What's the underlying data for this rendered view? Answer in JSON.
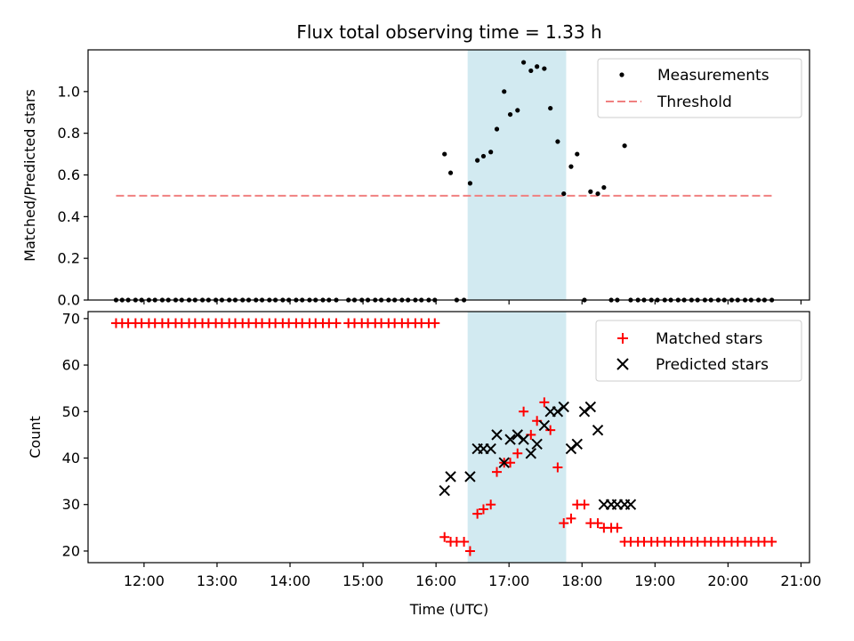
{
  "chart_data": [
    {
      "type": "scatter",
      "title": "Flux total observing time = 1.33 h",
      "ylabel": "Matched/Predicted stars",
      "xlabel": "",
      "xlim": [
        "11:14",
        "21:07"
      ],
      "ylim": [
        0,
        1.2
      ],
      "yticks": [
        0.0,
        0.2,
        0.4,
        0.6,
        0.8,
        1.0
      ],
      "ytick_labels": [
        "0.0",
        "0.2",
        "0.4",
        "0.6",
        "0.8",
        "1.0"
      ],
      "grid": false,
      "legend_position": "top-right",
      "shaded_span": {
        "from": "16:26",
        "to": "17:47",
        "color": "#add8e6"
      },
      "series": [
        {
          "name": "Measurements",
          "marker": "dot",
          "color": "#000000",
          "x": [
            "11:37",
            "11:42",
            "11:47",
            "11:53",
            "11:58",
            "12:04",
            "12:09",
            "12:15",
            "12:20",
            "12:26",
            "12:31",
            "12:37",
            "12:42",
            "12:48",
            "12:53",
            "12:59",
            "13:04",
            "13:10",
            "13:15",
            "13:21",
            "13:26",
            "13:32",
            "13:37",
            "13:43",
            "13:48",
            "13:54",
            "13:59",
            "14:05",
            "14:10",
            "14:16",
            "14:21",
            "14:27",
            "14:32",
            "14:38",
            "14:48",
            "14:53",
            "14:59",
            "15:04",
            "15:10",
            "15:15",
            "15:21",
            "15:26",
            "15:32",
            "15:37",
            "15:43",
            "15:48",
            "15:54",
            "15:59",
            "16:07",
            "16:12",
            "16:17",
            "16:23",
            "16:28",
            "16:34",
            "16:39",
            "16:45",
            "16:50",
            "16:56",
            "17:01",
            "17:07",
            "17:12",
            "17:18",
            "17:23",
            "17:29",
            "17:34",
            "17:40",
            "17:45",
            "17:51",
            "17:56",
            "18:02",
            "18:07",
            "18:13",
            "18:18",
            "18:24",
            "18:29",
            "18:35",
            "18:40",
            "18:46",
            "18:51",
            "18:57",
            "19:02",
            "19:08",
            "19:13",
            "19:19",
            "19:24",
            "19:30",
            "19:35",
            "19:41",
            "19:46",
            "19:52",
            "19:57",
            "20:03",
            "20:08",
            "20:14",
            "20:19",
            "20:25",
            "20:30",
            "20:36"
          ],
          "y": [
            0,
            0,
            0,
            0,
            0,
            0,
            0,
            0,
            0,
            0,
            0,
            0,
            0,
            0,
            0,
            0,
            0,
            0,
            0,
            0,
            0,
            0,
            0,
            0,
            0,
            0,
            0,
            0,
            0,
            0,
            0,
            0,
            0,
            0,
            0,
            0,
            0,
            0,
            0,
            0,
            0,
            0,
            0,
            0,
            0,
            0,
            0,
            0,
            0.7,
            0.61,
            0,
            0,
            0.56,
            0.67,
            0.69,
            0.71,
            0.82,
            1.0,
            0.89,
            0.91,
            1.14,
            1.1,
            1.12,
            1.11,
            0.92,
            0.76,
            0.51,
            0.64,
            0.7,
            0,
            0.52,
            0.51,
            0.54,
            0,
            0,
            0.74,
            0,
            0,
            0,
            0,
            0,
            0,
            0,
            0,
            0,
            0,
            0,
            0,
            0,
            0,
            0,
            0,
            0,
            0,
            0,
            0,
            0,
            0
          ]
        },
        {
          "name": "Threshold",
          "marker": "dashed-line",
          "color": "#f08080",
          "x": [
            "11:37",
            "20:36"
          ],
          "y": [
            0.5,
            0.5
          ]
        }
      ]
    },
    {
      "type": "scatter",
      "title": "",
      "ylabel": "Count",
      "xlabel": "Time (UTC)",
      "xlim": [
        "11:14",
        "21:07"
      ],
      "ylim": [
        17.5,
        71.5
      ],
      "xticks": [
        "12:00",
        "13:00",
        "14:00",
        "15:00",
        "16:00",
        "17:00",
        "18:00",
        "19:00",
        "20:00",
        "21:00"
      ],
      "yticks": [
        20,
        30,
        40,
        50,
        60,
        70
      ],
      "ytick_labels": [
        "20",
        "30",
        "40",
        "50",
        "60",
        "70"
      ],
      "grid": false,
      "legend_position": "top-right",
      "shaded_span": {
        "from": "16:26",
        "to": "17:47",
        "color": "#add8e6"
      },
      "series": [
        {
          "name": "Matched stars",
          "marker": "plus",
          "color": "#ff0000",
          "x": [
            "11:37",
            "11:42",
            "11:47",
            "11:53",
            "11:58",
            "12:04",
            "12:09",
            "12:15",
            "12:20",
            "12:26",
            "12:31",
            "12:37",
            "12:42",
            "12:48",
            "12:53",
            "12:59",
            "13:04",
            "13:10",
            "13:15",
            "13:21",
            "13:26",
            "13:32",
            "13:37",
            "13:43",
            "13:48",
            "13:54",
            "13:59",
            "14:05",
            "14:10",
            "14:16",
            "14:21",
            "14:27",
            "14:32",
            "14:38",
            "14:48",
            "14:53",
            "14:59",
            "15:04",
            "15:10",
            "15:15",
            "15:21",
            "15:26",
            "15:32",
            "15:37",
            "15:43",
            "15:48",
            "15:54",
            "15:59",
            "16:07",
            "16:12",
            "16:17",
            "16:23",
            "16:28",
            "16:34",
            "16:39",
            "16:45",
            "16:50",
            "16:56",
            "17:01",
            "17:07",
            "17:12",
            "17:18",
            "17:23",
            "17:29",
            "17:34",
            "17:40",
            "17:45",
            "17:51",
            "17:56",
            "18:02",
            "18:07",
            "18:13",
            "18:18",
            "18:24",
            "18:29",
            "18:35",
            "18:40",
            "18:46",
            "18:51",
            "18:57",
            "19:02",
            "19:08",
            "19:13",
            "19:19",
            "19:24",
            "19:30",
            "19:35",
            "19:41",
            "19:46",
            "19:52",
            "19:57",
            "20:03",
            "20:08",
            "20:14",
            "20:19",
            "20:25",
            "20:30",
            "20:36"
          ],
          "y": [
            69,
            69,
            69,
            69,
            69,
            69,
            69,
            69,
            69,
            69,
            69,
            69,
            69,
            69,
            69,
            69,
            69,
            69,
            69,
            69,
            69,
            69,
            69,
            69,
            69,
            69,
            69,
            69,
            69,
            69,
            69,
            69,
            69,
            69,
            69,
            69,
            69,
            69,
            69,
            69,
            69,
            69,
            69,
            69,
            69,
            69,
            69,
            69,
            23,
            22,
            22,
            22,
            20,
            28,
            29,
            30,
            37,
            39,
            39,
            41,
            50,
            45,
            48,
            52,
            46,
            38,
            26,
            27,
            30,
            30,
            26,
            26,
            25,
            25,
            25,
            22,
            22,
            22,
            22,
            22,
            22,
            22,
            22,
            22,
            22,
            22,
            22,
            22,
            22,
            22,
            22,
            22,
            22,
            22,
            22,
            22,
            22,
            22
          ]
        },
        {
          "name": "Predicted stars",
          "marker": "x",
          "color": "#000000",
          "x": [
            "16:07",
            "16:12",
            "16:28",
            "16:34",
            "16:39",
            "16:45",
            "16:50",
            "16:56",
            "17:01",
            "17:07",
            "17:12",
            "17:18",
            "17:23",
            "17:29",
            "17:34",
            "17:40",
            "17:45",
            "17:51",
            "17:56",
            "18:02",
            "18:07",
            "18:13",
            "18:18",
            "18:24",
            "18:29",
            "18:35",
            "18:40"
          ],
          "y": [
            33,
            36,
            36,
            42,
            42,
            42,
            45,
            39,
            44,
            45,
            44,
            41,
            43,
            47,
            50,
            50,
            51,
            42,
            43,
            50,
            51,
            46,
            30,
            30,
            30,
            30,
            30
          ]
        }
      ]
    }
  ]
}
